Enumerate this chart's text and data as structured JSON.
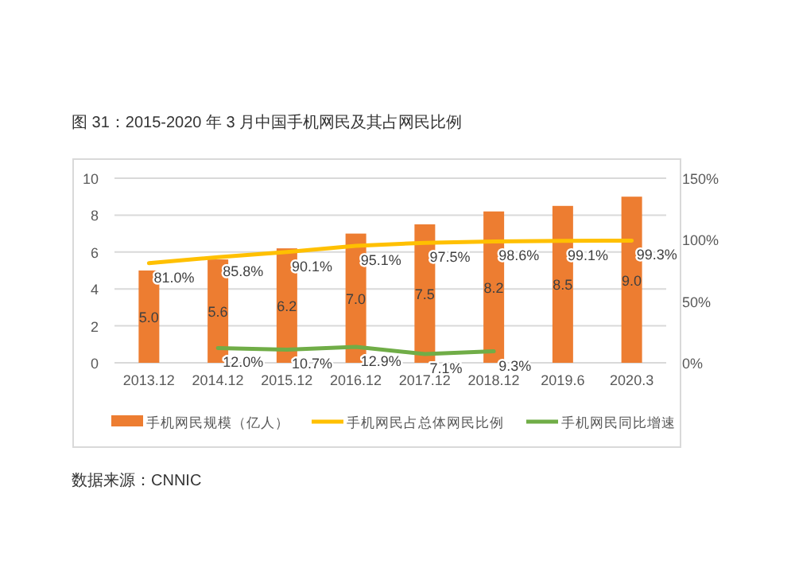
{
  "chart_data": {
    "type": "bar",
    "title": "图 31：2015-2020 年 3 月中国手机网民及其占网民比例",
    "categories": [
      "2013.12",
      "2014.12",
      "2015.12",
      "2016.12",
      "2017.12",
      "2018.12",
      "2019.6",
      "2020.3"
    ],
    "series": [
      {
        "name": "手机网民规模（亿人）",
        "color": "#ed7d31",
        "values": [
          5.0,
          5.6,
          6.2,
          7.0,
          7.5,
          8.2,
          8.5,
          9.0
        ],
        "value_labels": [
          "5.0",
          "5.6",
          "6.2",
          "7.0",
          "7.5",
          "8.2",
          "8.5",
          "9.0"
        ]
      },
      {
        "name": "手机网民占总体网民比例",
        "type": "line",
        "axis": "y2",
        "color": "#ffc000",
        "values": [
          81.0,
          85.8,
          90.1,
          95.1,
          97.5,
          98.6,
          99.1,
          99.3
        ],
        "value_labels": [
          "81.0%",
          "85.8%",
          "90.1%",
          "95.1%",
          "97.5%",
          "98.6%",
          "99.1%",
          "99.3%"
        ]
      },
      {
        "name": "手机网民同比增速",
        "type": "line",
        "axis": "y2",
        "color": "#70ad47",
        "values": [
          null,
          12.0,
          10.7,
          12.9,
          7.1,
          9.3,
          null,
          null
        ],
        "value_labels": [
          null,
          "12.0%",
          "10.7%",
          "12.9%",
          "7.1%",
          "9.3%",
          null,
          null
        ]
      }
    ],
    "ylim": [
      0,
      10
    ],
    "yticks": [
      0,
      2,
      4,
      6,
      8,
      10
    ],
    "y2lim": [
      0,
      150
    ],
    "y2ticks": [
      {
        "value": 0,
        "label": "0%"
      },
      {
        "value": 50,
        "label": "50%"
      },
      {
        "value": 100,
        "label": "100%"
      },
      {
        "value": 150,
        "label": "150%"
      }
    ],
    "grid": "y",
    "legend": "bottom",
    "marker": "none",
    "line_style": "solid",
    "annotations": [
      "数据来源：CNNIC"
    ]
  }
}
